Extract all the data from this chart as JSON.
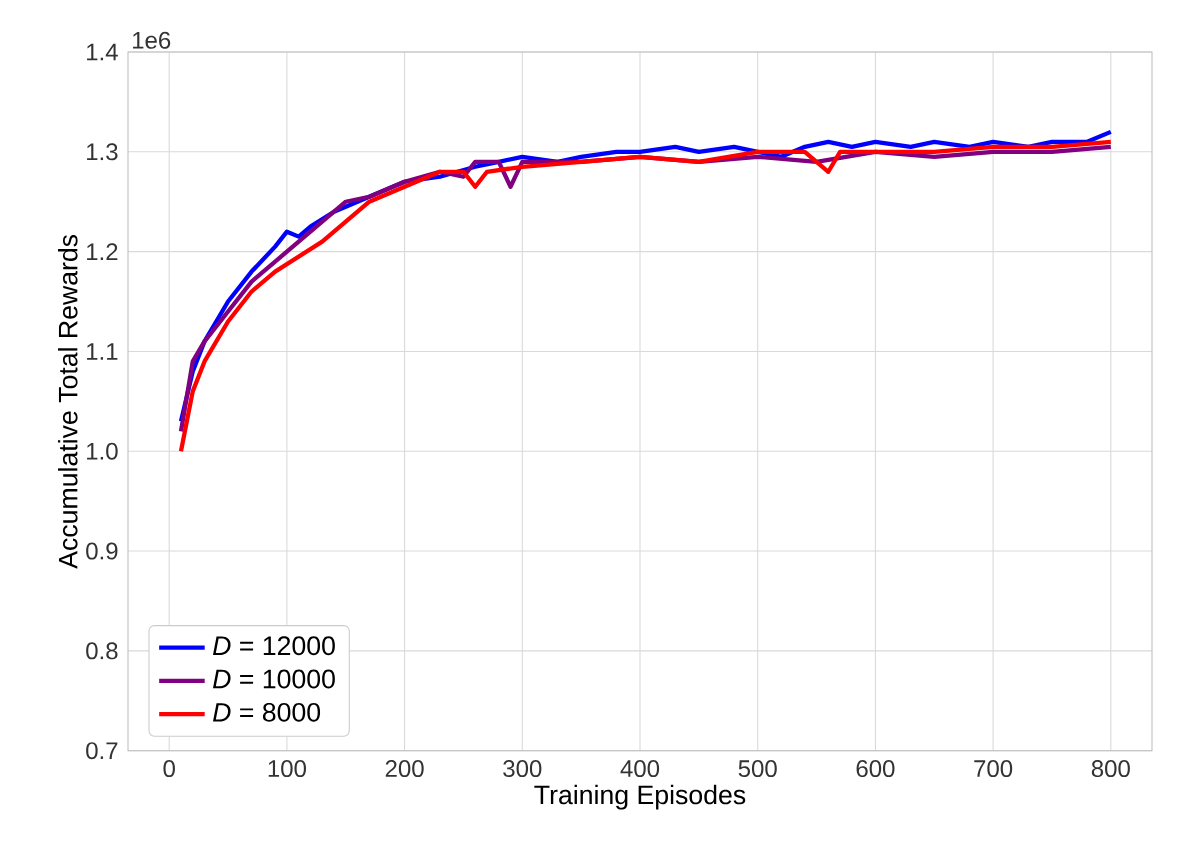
{
  "chart_data": {
    "type": "line",
    "xlabel": "Training Episodes",
    "ylabel": "Accumulative Total Rewards",
    "annotations": [
      "1e6"
    ],
    "xlim": [
      -35,
      835
    ],
    "ylim": [
      0.7,
      1.4
    ],
    "xticks": [
      0,
      100,
      200,
      300,
      400,
      500,
      600,
      700,
      800
    ],
    "yticks": [
      0.7,
      0.8,
      0.9,
      {
        "value": 1.0,
        "label": "1.0"
      },
      1.1,
      1.2,
      1.3,
      1.4
    ],
    "grid": true,
    "legend": "bottom left",
    "marker": "none",
    "line_style": "solid",
    "series": [
      {
        "name": "*D* = 12000",
        "color": "#0000ff",
        "x": [
          10,
          20,
          30,
          50,
          70,
          90,
          100,
          110,
          120,
          140,
          160,
          180,
          200,
          230,
          260,
          280,
          300,
          330,
          350,
          380,
          400,
          430,
          450,
          480,
          500,
          520,
          540,
          560,
          580,
          600,
          630,
          650,
          680,
          700,
          730,
          750,
          780,
          800
        ],
        "values": [
          1.03,
          1.08,
          1.11,
          1.15,
          1.18,
          1.205,
          1.22,
          1.215,
          1.225,
          1.24,
          1.25,
          1.26,
          1.27,
          1.275,
          1.285,
          1.29,
          1.295,
          1.29,
          1.295,
          1.3,
          1.3,
          1.305,
          1.3,
          1.305,
          1.3,
          1.295,
          1.305,
          1.31,
          1.305,
          1.31,
          1.305,
          1.31,
          1.305,
          1.31,
          1.305,
          1.31,
          1.31,
          1.32
        ]
      },
      {
        "name": "*D* = 10000",
        "color": "#800080",
        "x": [
          10,
          20,
          30,
          50,
          70,
          90,
          110,
          130,
          150,
          170,
          200,
          230,
          250,
          260,
          280,
          290,
          300,
          350,
          400,
          450,
          500,
          550,
          600,
          650,
          700,
          750,
          800
        ],
        "values": [
          1.02,
          1.09,
          1.11,
          1.14,
          1.17,
          1.19,
          1.21,
          1.23,
          1.25,
          1.255,
          1.27,
          1.28,
          1.275,
          1.29,
          1.29,
          1.265,
          1.29,
          1.29,
          1.295,
          1.29,
          1.295,
          1.29,
          1.3,
          1.295,
          1.3,
          1.3,
          1.305
        ]
      },
      {
        "name": "*D* = 8000",
        "color": "#ff0000",
        "x": [
          10,
          20,
          30,
          50,
          70,
          90,
          110,
          130,
          150,
          170,
          200,
          230,
          250,
          260,
          270,
          300,
          350,
          400,
          450,
          500,
          540,
          560,
          570,
          600,
          650,
          700,
          750,
          800
        ],
        "values": [
          1.0,
          1.06,
          1.09,
          1.13,
          1.16,
          1.18,
          1.195,
          1.21,
          1.23,
          1.25,
          1.265,
          1.28,
          1.28,
          1.265,
          1.28,
          1.285,
          1.29,
          1.295,
          1.29,
          1.3,
          1.3,
          1.28,
          1.3,
          1.3,
          1.3,
          1.305,
          1.305,
          1.31
        ]
      }
    ]
  }
}
